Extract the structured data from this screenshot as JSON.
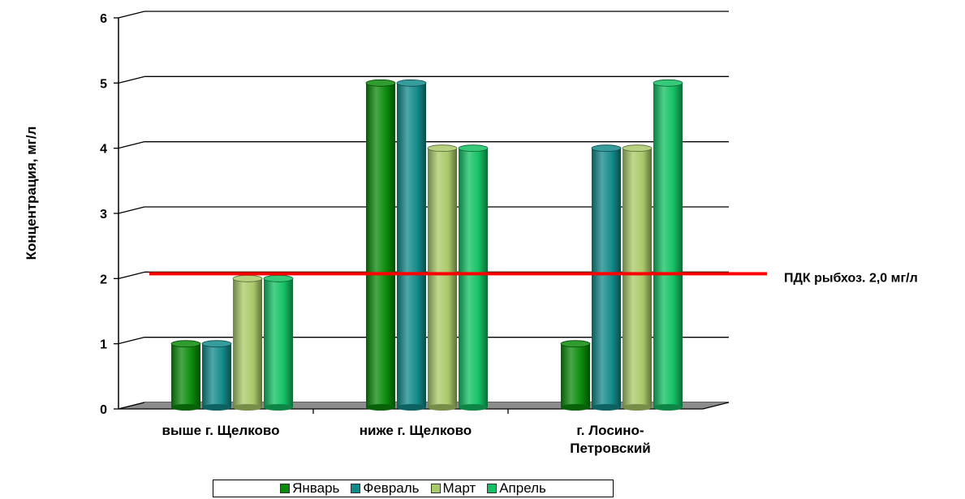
{
  "chart_data": {
    "type": "bar",
    "style": "3d-cylinder",
    "ylabel": "Концентрация, мг/л",
    "ylim": [
      0,
      6
    ],
    "yticks": [
      "0",
      "1",
      "2",
      "3",
      "4",
      "5",
      "6"
    ],
    "grid": true,
    "categories": [
      [
        "выше г. Щелково"
      ],
      [
        "ниже г. Щелково"
      ],
      [
        "г. Лосино-",
        "Петровский"
      ]
    ],
    "series": [
      {
        "name": "Январь",
        "values": [
          1,
          5,
          1
        ],
        "color": "#0b8a0b"
      },
      {
        "name": "Февраль",
        "values": [
          1,
          5,
          4
        ],
        "color": "#138a8a"
      },
      {
        "name": "Март",
        "values": [
          2,
          4,
          4
        ],
        "color": "#a9c96a"
      },
      {
        "name": "Апрель",
        "values": [
          2,
          4,
          5
        ],
        "color": "#13c063"
      }
    ],
    "reference_line": {
      "label": "ПДК рыбхоз. 2,0 мг/л",
      "value": 2.0,
      "color": "#ff0000"
    },
    "legend_position": "bottom"
  }
}
